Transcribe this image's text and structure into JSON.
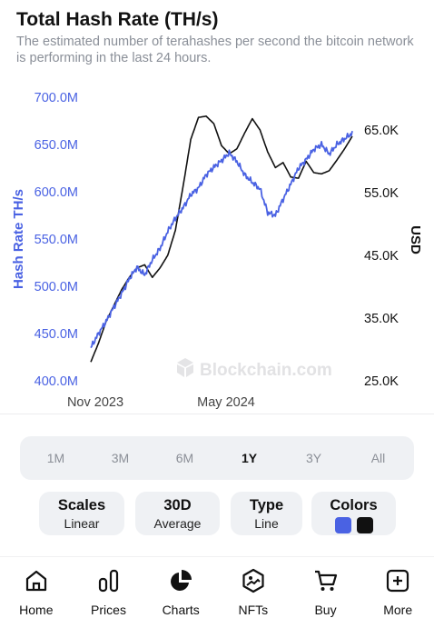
{
  "header": {
    "title": "Total Hash Rate (TH/s)",
    "subtitle": "The estimated number of terahashes per second the bitcoin network is performing in the last 24 hours."
  },
  "chart_data": {
    "type": "line",
    "ylabel_left": "Hash Rate TH/s",
    "ylabel_right": "USD",
    "x_ticks": [
      "Nov 2023",
      "May 2024"
    ],
    "y_left_ticks": [
      "700.0M",
      "650.0M",
      "600.0M",
      "550.0M",
      "500.0M",
      "450.0M",
      "400.0M"
    ],
    "y_left_range": [
      400,
      700
    ],
    "y_right_ticks": [
      "65.0K",
      "55.0K",
      "45.0K",
      "35.0K",
      "25.0K"
    ],
    "y_right_range": [
      25000,
      65000
    ],
    "watermark": "Blockchain.com",
    "colors": {
      "hash_rate": "#4a62e3",
      "price": "#111111",
      "left_axis": "#4a62e3"
    },
    "series": [
      {
        "name": "Hash Rate TH/s",
        "axis": "left",
        "color": "#4a62e3",
        "values": [
          435,
          450,
          463,
          478,
          492,
          508,
          520,
          512,
          528,
          540,
          558,
          572,
          583,
          597,
          604,
          618,
          626,
          633,
          641,
          632,
          618,
          610,
          603,
          578,
          575,
          592,
          608,
          625,
          634,
          645,
          650,
          640,
          650,
          656,
          662
        ]
      },
      {
        "name": "USD",
        "axis": "right",
        "color": "#111111",
        "values": [
          28000,
          31000,
          34500,
          37000,
          39500,
          41500,
          43000,
          43500,
          41500,
          43000,
          45000,
          49000,
          56000,
          63500,
          67000,
          67200,
          66000,
          62500,
          61200,
          62000,
          64500,
          66800,
          65000,
          61500,
          59000,
          59800,
          57500,
          57300,
          60000,
          58200,
          58000,
          58500,
          60200,
          62000,
          64000
        ]
      }
    ]
  },
  "range_selector": {
    "options": [
      "1M",
      "3M",
      "6M",
      "1Y",
      "3Y",
      "All"
    ],
    "selected": "1Y"
  },
  "settings": {
    "scales": {
      "label": "Scales",
      "value": "Linear"
    },
    "average": {
      "label": "30D",
      "value": "Average"
    },
    "type": {
      "label": "Type",
      "value": "Line"
    },
    "colors": {
      "label": "Colors",
      "swatch_1": "#4a62e3",
      "swatch_2": "#111111"
    }
  },
  "nav": {
    "home": "Home",
    "prices": "Prices",
    "charts": "Charts",
    "nfts": "NFTs",
    "buy": "Buy",
    "more": "More"
  }
}
